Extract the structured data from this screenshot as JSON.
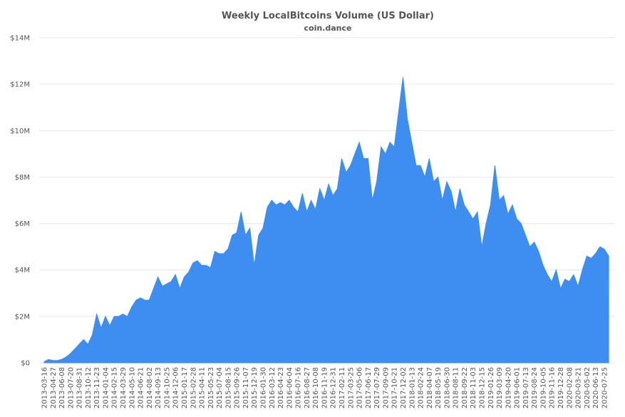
{
  "chart_data": {
    "type": "area",
    "title": "Weekly LocalBitcoins Volume (US Dollar)",
    "subtitle": "coin.dance",
    "color": "#3d8ef0",
    "grid": true,
    "ylim": [
      0,
      14
    ],
    "yticks": [
      {
        "value": 0,
        "label": "$0"
      },
      {
        "value": 2,
        "label": "$2M"
      },
      {
        "value": 4,
        "label": "$4M"
      },
      {
        "value": 6,
        "label": "$6M"
      },
      {
        "value": 8,
        "label": "$8M"
      },
      {
        "value": 10,
        "label": "$10M"
      },
      {
        "value": 12,
        "label": "$12M"
      },
      {
        "value": 14,
        "label": "$14M"
      }
    ],
    "categories": [
      "2013-03-16",
      null,
      "2013-04-27",
      null,
      "2013-06-08",
      null,
      "2013-07-20",
      null,
      "2013-08-31",
      null,
      "2013-10-12",
      null,
      "2013-11-23",
      null,
      "2014-01-04",
      null,
      "2014-02-15",
      null,
      "2014-03-29",
      null,
      "2014-05-10",
      null,
      "2014-06-21",
      null,
      "2014-08-02",
      null,
      "2014-09-13",
      null,
      "2014-10-25",
      null,
      "2014-12-06",
      null,
      "2015-01-17",
      null,
      "2015-02-28",
      null,
      "2015-04-11",
      null,
      "2015-05-23",
      null,
      "2015-07-04",
      null,
      "2015-08-15",
      null,
      "2015-09-26",
      null,
      "2015-11-07",
      null,
      "2015-12-19",
      null,
      "2016-01-30",
      null,
      "2016-03-12",
      null,
      "2016-04-23",
      null,
      "2016-06-04",
      null,
      "2016-07-16",
      null,
      "2016-08-27",
      null,
      "2016-10-08",
      null,
      "2016-11-19",
      null,
      "2016-12-31",
      null,
      "2017-02-11",
      null,
      "2017-03-25",
      null,
      "2017-05-06",
      null,
      "2017-06-17",
      null,
      "2017-07-29",
      null,
      "2017-09-09",
      null,
      "2017-10-21",
      null,
      "2017-12-02",
      null,
      "2018-01-13",
      null,
      "2018-02-24",
      null,
      "2018-04-07",
      null,
      "2018-05-19",
      null,
      "2018-06-30",
      null,
      "2018-08-11",
      null,
      "2018-09-22",
      null,
      "2018-11-03",
      null,
      "2018-12-15",
      null,
      "2019-01-26",
      null,
      "2019-03-09",
      null,
      "2019-04-20",
      null,
      "2019-06-01",
      null,
      "2019-07-13",
      null,
      "2019-08-24",
      null,
      "2019-10-05",
      null,
      "2019-11-16",
      null,
      "2019-12-28",
      null,
      "2020-02-08",
      null,
      "2020-03-21",
      null,
      "2020-05-02",
      null,
      "2020-06-13",
      null,
      "2020-07-25",
      null
    ],
    "values": [
      0.05,
      0.15,
      0.1,
      0.1,
      0.15,
      0.25,
      0.4,
      0.6,
      0.8,
      1.0,
      0.8,
      1.2,
      2.1,
      1.5,
      2.0,
      1.6,
      2.0,
      2.0,
      2.1,
      2.0,
      2.4,
      2.7,
      2.8,
      2.7,
      2.7,
      3.2,
      3.7,
      3.3,
      3.4,
      3.5,
      3.8,
      3.2,
      3.7,
      3.9,
      4.3,
      4.4,
      4.2,
      4.2,
      4.1,
      4.8,
      4.7,
      4.7,
      4.9,
      5.5,
      5.6,
      6.5,
      5.5,
      5.8,
      4.2,
      5.5,
      5.8,
      6.7,
      7.0,
      6.8,
      6.9,
      6.8,
      7.0,
      6.7,
      6.5,
      7.3,
      6.5,
      7.0,
      6.6,
      7.5,
      7.0,
      7.7,
      7.2,
      7.5,
      8.8,
      8.2,
      8.5,
      9.0,
      9.5,
      8.8,
      8.8,
      7.0,
      7.8,
      9.3,
      9.0,
      9.5,
      9.3,
      10.8,
      12.3,
      10.5,
      9.5,
      8.5,
      8.5,
      8.0,
      8.8,
      7.8,
      8.0,
      7.0,
      7.8,
      7.4,
      6.5,
      7.5,
      6.8,
      6.5,
      6.2,
      6.5,
      5.0,
      6.0,
      6.8,
      8.5,
      7.0,
      7.2,
      6.4,
      6.8,
      6.2,
      6.0,
      5.5,
      5.0,
      5.2,
      4.8,
      4.2,
      3.8,
      3.5,
      4.0,
      3.2,
      3.6,
      3.5,
      3.8,
      3.3,
      4.0,
      4.6,
      4.5,
      4.7,
      5.0,
      4.9,
      4.6
    ]
  }
}
